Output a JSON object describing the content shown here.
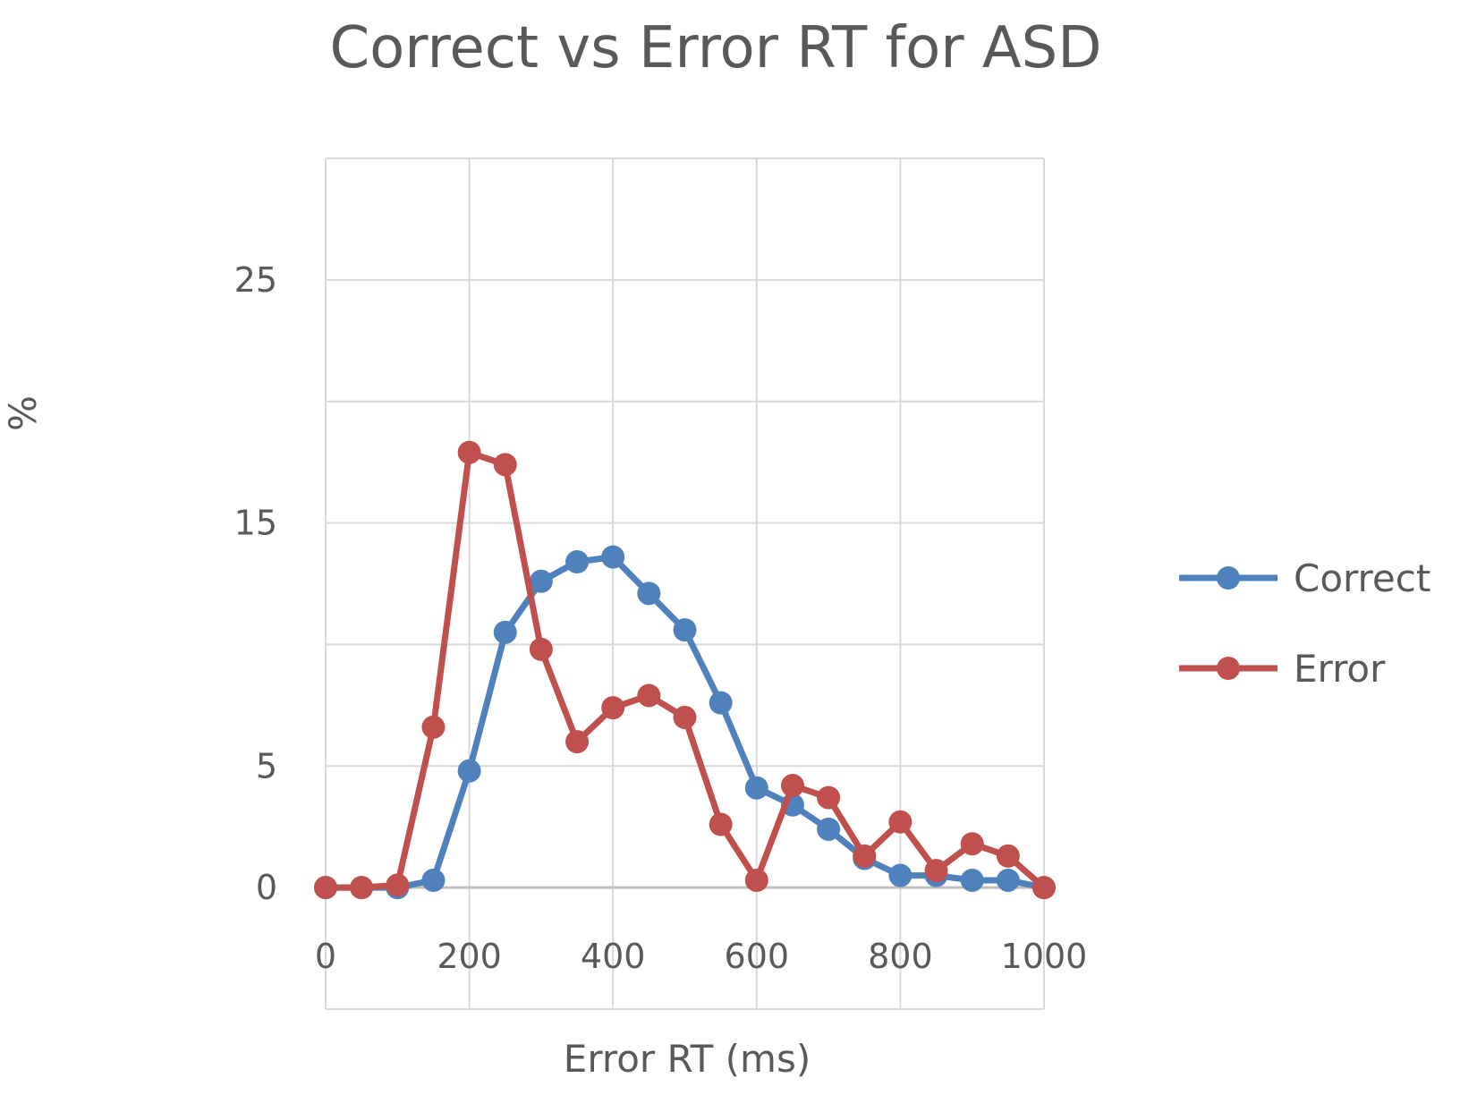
{
  "chart_data": {
    "type": "line",
    "title": "Correct vs Error RT for ASD",
    "xlabel": "Error RT (ms)",
    "ylabel": "%",
    "xlim": [
      0,
      1000
    ],
    "ylim": [
      -5,
      30
    ],
    "x_ticks": [
      "0",
      "200",
      "400",
      "600",
      "800",
      "1000"
    ],
    "y_ticks": [
      {
        "value": 0,
        "label": "0"
      },
      {
        "value": 5,
        "label": "5"
      },
      {
        "value": 15,
        "label": "15"
      },
      {
        "value": 25,
        "label": "25"
      }
    ],
    "grid": true,
    "legend_position": "right",
    "x": [
      0,
      50,
      100,
      150,
      200,
      250,
      300,
      350,
      400,
      450,
      500,
      550,
      600,
      650,
      700,
      750,
      800,
      850,
      900,
      950,
      1000
    ],
    "series": [
      {
        "name": "Correct",
        "color": "#4f81bd",
        "values": [
          0,
          0,
          0,
          0.3,
          4.8,
          10.5,
          12.6,
          13.4,
          13.6,
          12.1,
          10.6,
          7.6,
          4.1,
          3.4,
          2.4,
          1.2,
          0.5,
          0.5,
          0.3,
          0.3,
          0
        ]
      },
      {
        "name": "Error",
        "color": "#c0504d",
        "values": [
          0,
          0,
          0.1,
          6.6,
          17.9,
          17.4,
          9.8,
          6.0,
          7.4,
          7.9,
          7.0,
          2.6,
          0.3,
          4.2,
          3.7,
          1.3,
          2.7,
          0.7,
          1.8,
          1.3,
          0
        ]
      }
    ]
  }
}
